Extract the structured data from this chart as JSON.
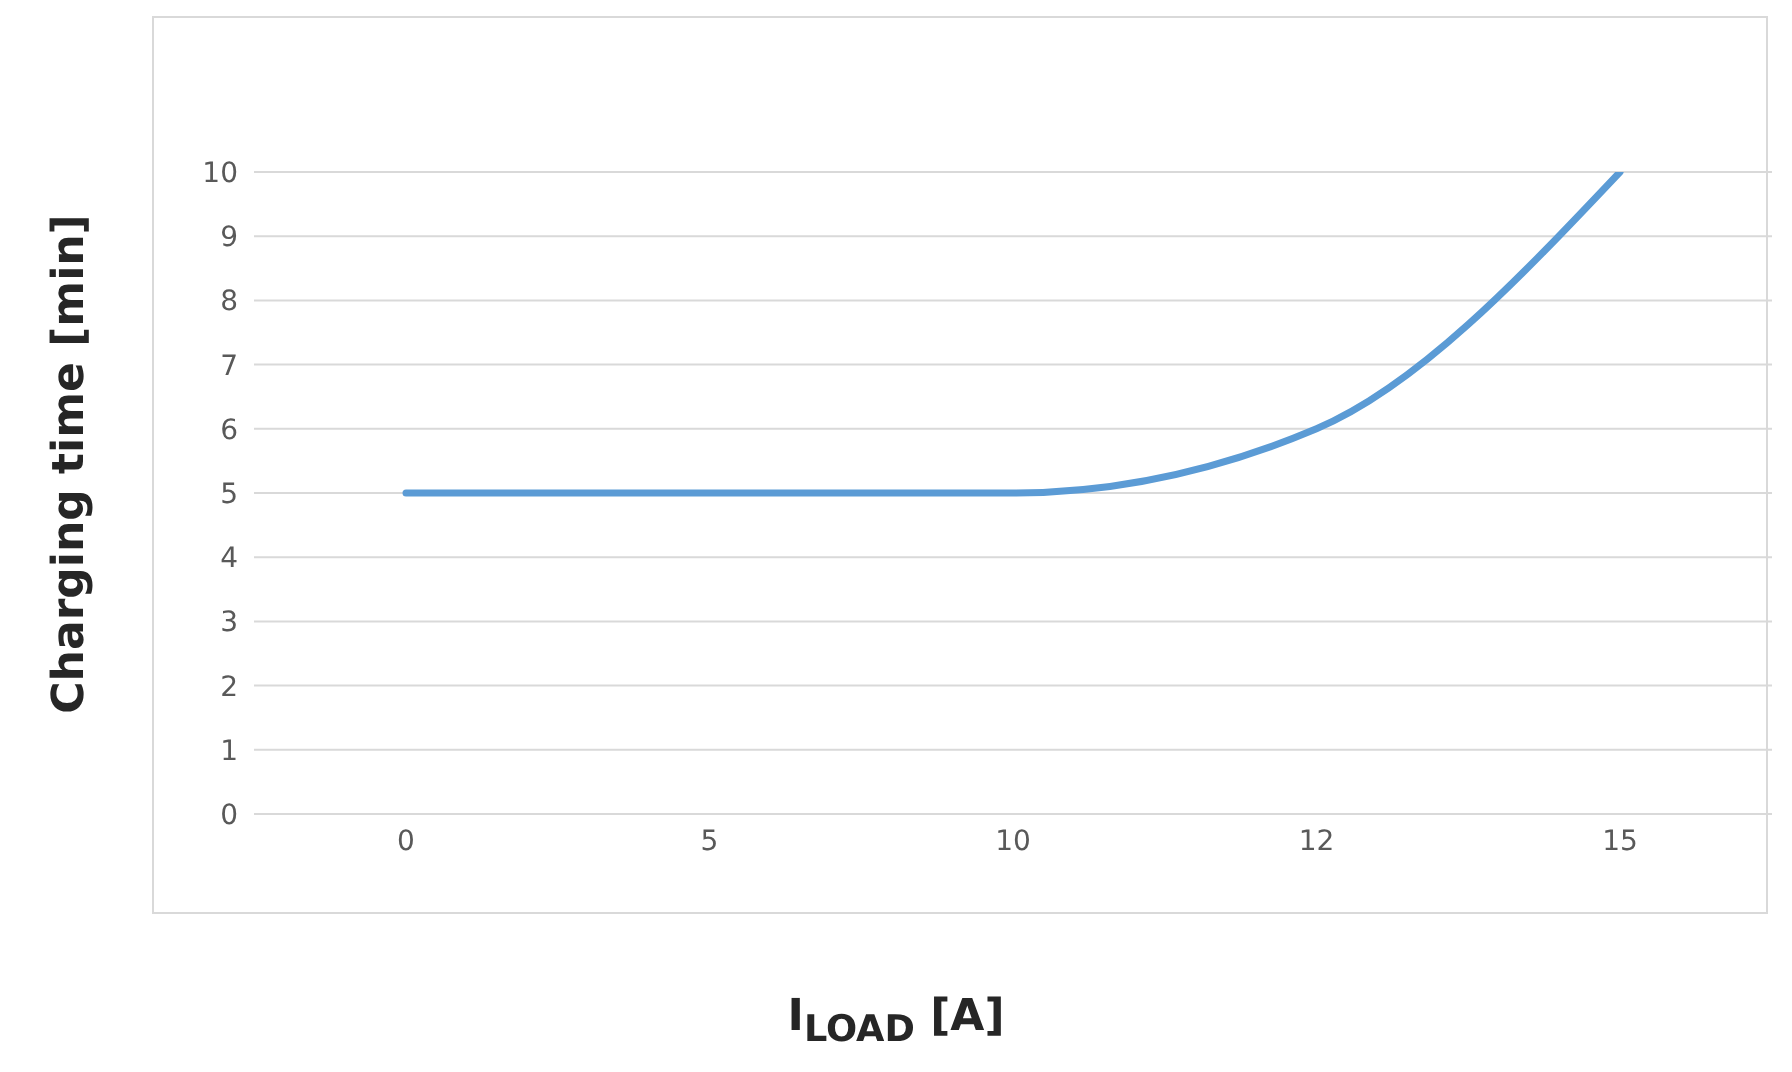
{
  "chart_data": {
    "type": "line",
    "xlabel": "I$_{LOAD}$ [A]",
    "ylabel": "Charging time [min]",
    "categories": [
      "0",
      "5",
      "10",
      "12",
      "15"
    ],
    "series": [
      {
        "color": "#5b9bd5",
        "values": [
          5,
          5,
          5,
          6,
          10
        ]
      }
    ],
    "ylim": [
      0,
      10
    ],
    "yticks": [
      0,
      1,
      2,
      3,
      4,
      5,
      6,
      7,
      8,
      9,
      10
    ],
    "grid": "y",
    "legend": false,
    "marker": "none",
    "line_style": "solid"
  }
}
